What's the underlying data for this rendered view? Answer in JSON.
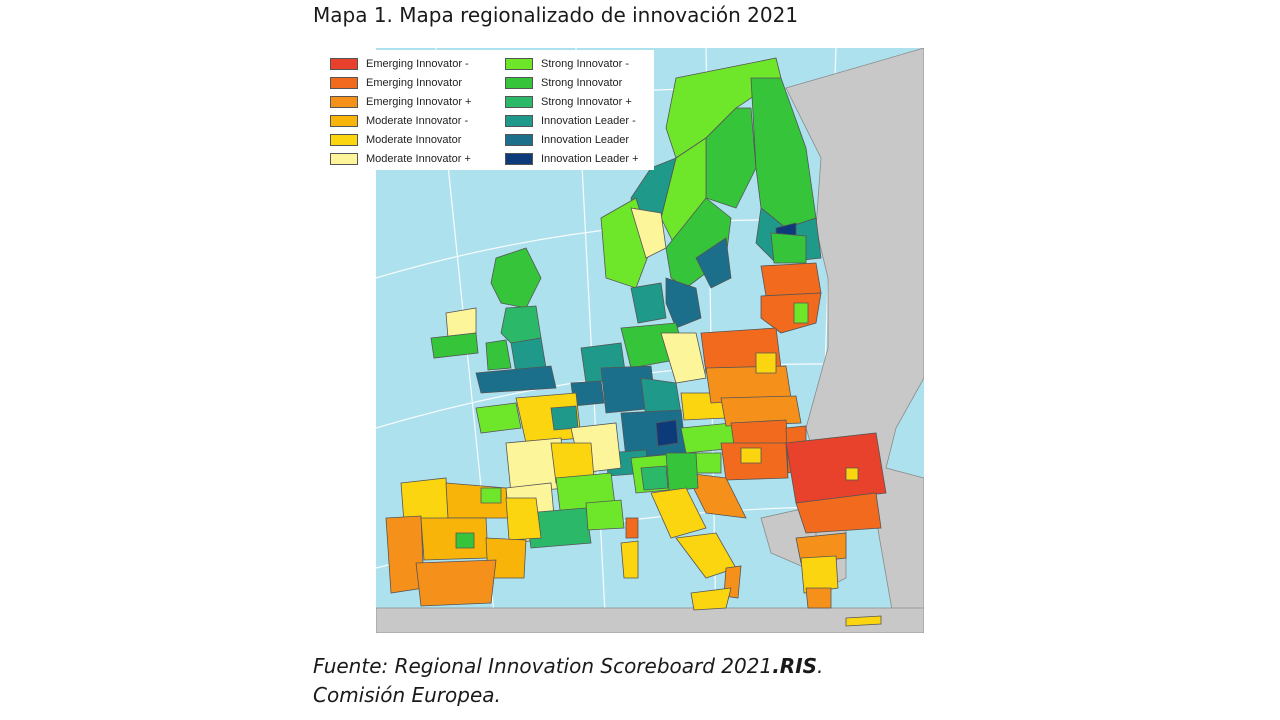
{
  "figure": {
    "title": "Mapa 1. Mapa regionalizado de innovación 2021",
    "source_line1_prefix": "Fuente: Regional Innovation Scoreboard 2021",
    "source_line1_bold": ".RIS",
    "source_line1_suffix": ".",
    "source_line2": "Comisión Europea."
  },
  "legend": {
    "column_left": [
      {
        "label": "Emerging Innovator -",
        "color": "#e8412c"
      },
      {
        "label": "Emerging Innovator",
        "color": "#f16a1e"
      },
      {
        "label": "Emerging Innovator +",
        "color": "#f5901a"
      },
      {
        "label": "Moderate Innovator -",
        "color": "#f9b409"
      },
      {
        "label": "Moderate Innovator",
        "color": "#fbd50f"
      },
      {
        "label": "Moderate Innovator +",
        "color": "#fdf59a"
      }
    ],
    "column_right": [
      {
        "label": "Strong Innovator -",
        "color": "#6ee62a"
      },
      {
        "label": "Strong Innovator",
        "color": "#35c43a"
      },
      {
        "label": "Strong Innovator +",
        "color": "#2bb969"
      },
      {
        "label": "Innovation Leader -",
        "color": "#1f9a8a"
      },
      {
        "label": "Innovation Leader",
        "color": "#1b6f8a"
      },
      {
        "label": "Innovation Leader +",
        "color": "#0d3a78"
      }
    ]
  },
  "map": {
    "sea_color": "#aee1ee",
    "non_eu_color": "#c8c8c8",
    "graticule_color": "#ffffff"
  }
}
